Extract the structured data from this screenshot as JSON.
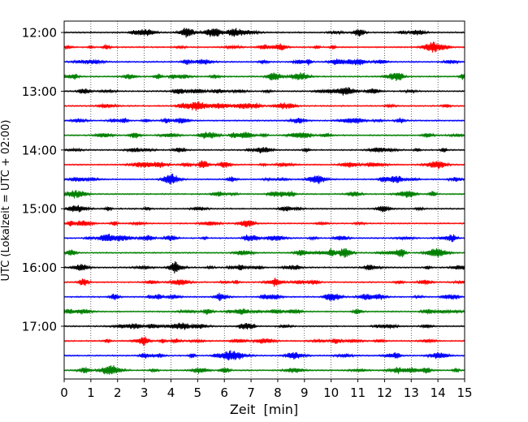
{
  "chart_data": {
    "type": "line",
    "title": "",
    "xlabel": "Zeit  [min]",
    "ylabel": "UTC (Lokalzeit = UTC + 02:00)",
    "xlim": [
      0,
      15
    ],
    "x_ticks": [
      "0",
      "1",
      "2",
      "3",
      "4",
      "5",
      "6",
      "7",
      "8",
      "9",
      "10",
      "11",
      "12",
      "13",
      "14",
      "15"
    ],
    "y_tick_labels": [
      "12:00",
      "13:00",
      "14:00",
      "15:00",
      "16:00",
      "17:00"
    ],
    "y_tick_trace_index": [
      0,
      4,
      8,
      12,
      16,
      20
    ],
    "grid": "vertical dotted lines at each minute",
    "trace_count": 24,
    "trace_interval_minutes": 15,
    "trace_colors": [
      "#000000",
      "#ff0000",
      "#0000ff",
      "#008000"
    ],
    "first_trace_utc": "12:00",
    "last_trace_utc": "17:45"
  }
}
